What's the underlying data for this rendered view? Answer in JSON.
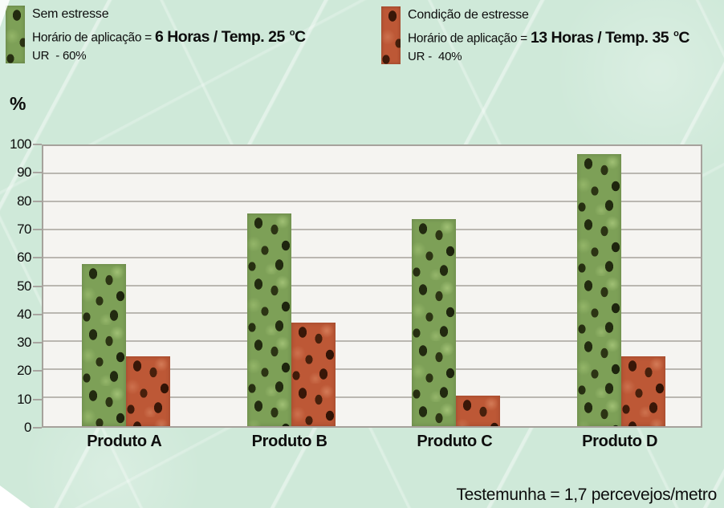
{
  "background_color": "#cfe9d9",
  "legend": [
    {
      "title": "Sem estresse",
      "app_prefix": "Horário de aplicação = ",
      "app_bold": "6 Horas / Temp. 25 ",
      "deg": "o",
      "deg_unit": "C",
      "humidity": "UR  - 60%",
      "swatch": "green-bug-texture"
    },
    {
      "title": "Condição de estresse",
      "app_prefix": "Horário de aplicação = ",
      "app_bold": "13 Horas / Temp. 35 ",
      "deg": "o",
      "deg_unit": "C",
      "humidity": "UR -  40%",
      "swatch": "red-bug-texture"
    }
  ],
  "chart_data": {
    "type": "bar",
    "categories": [
      "Produto A",
      "Produto B",
      "Produto C",
      "Produto D"
    ],
    "series": [
      {
        "name": "Sem estresse",
        "values": [
          58,
          76,
          74,
          97
        ],
        "color": "#7da057",
        "texture": "green-with-dark-stinkbugs"
      },
      {
        "name": "Condição de estresse",
        "values": [
          25,
          37,
          11,
          25
        ],
        "color": "#bd5836",
        "texture": "red-with-dark-stinkbugs"
      }
    ],
    "ylabel": "%",
    "xlabel": "",
    "ylim": [
      0,
      100
    ],
    "yticks": [
      0,
      10,
      20,
      30,
      40,
      50,
      60,
      70,
      80,
      90,
      100
    ],
    "grid": "horizontal",
    "legend_position": "top",
    "plot_background": "#f5f4f1",
    "gridline_color": "#bab7b1"
  },
  "footer": {
    "note": "Testemunha = 1,7 percevejos/metro"
  }
}
